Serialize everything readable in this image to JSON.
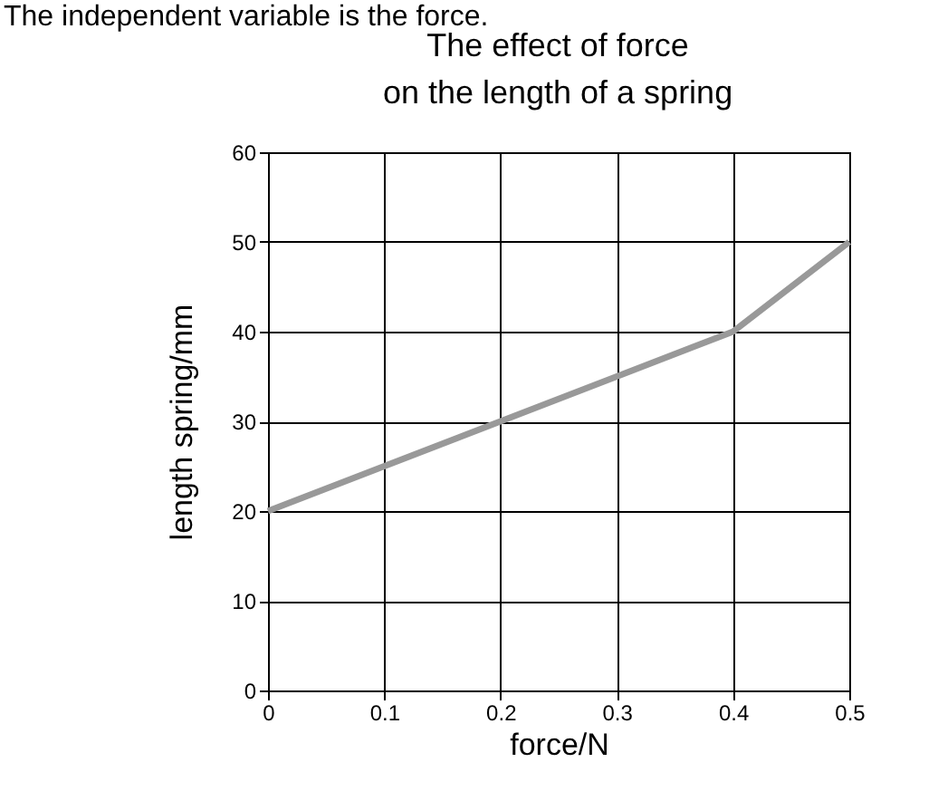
{
  "chart_data": {
    "type": "line",
    "title": "The effect of force\non the length of a spring",
    "xlabel": "force/N",
    "ylabel": "length spring/mm",
    "annotations": [
      "The independent variable is the force."
    ],
    "x": [
      0,
      0.1,
      0.2,
      0.3,
      0.4,
      0.5
    ],
    "series": [
      {
        "color": "#999999",
        "values": [
          20,
          25,
          30,
          35,
          40,
          50
        ]
      }
    ],
    "xlim": [
      0,
      0.5
    ],
    "xticks": [
      0,
      0.1,
      0.2,
      0.3,
      0.4,
      0.5
    ],
    "ylim": [
      0,
      60
    ],
    "yticks": [
      0,
      10,
      20,
      30,
      40,
      50,
      60
    ],
    "grid": true,
    "marker": "none",
    "line_style": "solid"
  }
}
